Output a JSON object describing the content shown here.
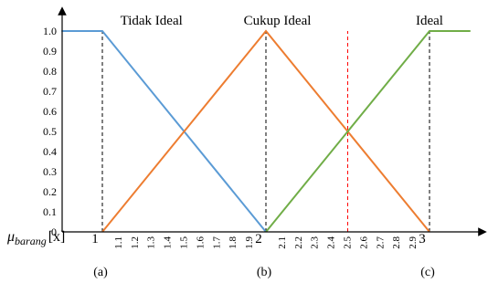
{
  "chart_data": {
    "type": "line",
    "ylim": [
      0,
      1.0
    ],
    "y_ticks": [
      "0",
      "0.1",
      "0.2",
      "0.3",
      "0.4",
      "0.5",
      "0.6",
      "0.7",
      "0.8",
      "0.9",
      "1.0"
    ],
    "x_range": [
      0.75,
      3.4
    ],
    "x_minor_ticks": [
      "1.1",
      "1.2",
      "1.3",
      "1.4",
      "1.5",
      "1.6",
      "1.7",
      "1.8",
      "1.9",
      "2.1",
      "2.2",
      "2.3",
      "2.4",
      "2.5",
      "2.6",
      "2.7",
      "2.8",
      "2.9"
    ],
    "x_major_ticks": [
      "1",
      "2",
      "3"
    ],
    "x_axis_label": "μ",
    "x_axis_label_subscript": "barang",
    "x_axis_label_suffix": "[x]",
    "sub_labels": [
      "(a)",
      "(b)",
      "(c)"
    ],
    "series": [
      {
        "name": "Tidak Ideal",
        "color": "#5b9bd5",
        "points": [
          [
            0.75,
            1.0
          ],
          [
            1.0,
            1.0
          ],
          [
            2.0,
            0
          ]
        ]
      },
      {
        "name": "Cukup Ideal",
        "color": "#ed7d31",
        "points": [
          [
            1.0,
            0
          ],
          [
            2.0,
            1.0
          ],
          [
            3.0,
            0
          ]
        ]
      },
      {
        "name": "Ideal",
        "color": "#70ad47",
        "points": [
          [
            2.0,
            0
          ],
          [
            3.0,
            1.0
          ],
          [
            3.25,
            1.0
          ]
        ]
      }
    ],
    "reference_lines": [
      {
        "x": 1.0,
        "color": "#000000"
      },
      {
        "x": 2.0,
        "color": "#000000"
      },
      {
        "x": 3.0,
        "color": "#000000"
      },
      {
        "x": 2.5,
        "color": "#ff0000"
      }
    ]
  }
}
